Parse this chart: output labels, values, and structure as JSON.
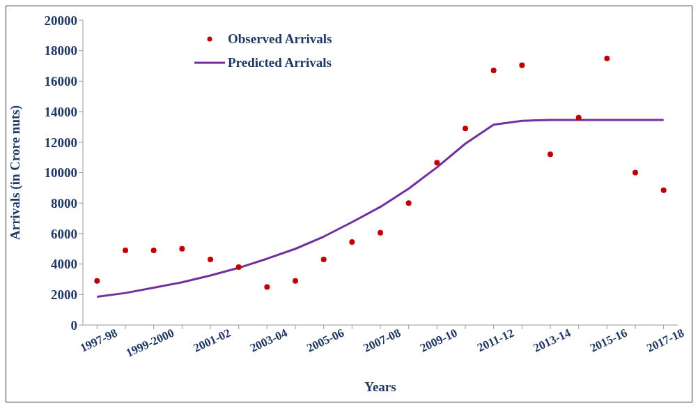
{
  "chart_data": {
    "type": "line",
    "xlabel": "Years",
    "ylabel": "Arrivals (in Crore nuts)",
    "categories": [
      "1997-98",
      null,
      "1999-2000",
      null,
      "2001-02",
      null,
      "2003-04",
      null,
      "2005-06",
      null,
      "2007-08",
      null,
      "2009-10",
      null,
      "2011-12",
      null,
      "2013-14",
      null,
      "2015-16",
      null,
      "2017-18"
    ],
    "series": [
      {
        "name": "Observed Arrivals",
        "type": "scatter",
        "color": "#c00000",
        "marker": "circle",
        "values": [
          2900,
          4900,
          4900,
          5000,
          4300,
          3800,
          2500,
          2900,
          4300,
          5450,
          6050,
          8000,
          10650,
          12900,
          16700,
          17050,
          11200,
          13600,
          17500,
          10000,
          8850
        ]
      },
      {
        "name": "Predicted Arrivals",
        "color": "#7030a0",
        "marker": "none",
        "line_style": "solid",
        "values": [
          1850,
          2100,
          2450,
          2800,
          3250,
          3750,
          4350,
          5000,
          5800,
          6750,
          7750,
          8950,
          10350,
          11900,
          13150,
          13400,
          13450,
          13450,
          13450,
          13450,
          13450
        ]
      }
    ],
    "ylim": [
      0,
      20000
    ],
    "yticks": [
      0,
      2000,
      4000,
      6000,
      8000,
      10000,
      12000,
      14000,
      16000,
      18000,
      20000
    ],
    "grid": false,
    "legend": "top left"
  }
}
